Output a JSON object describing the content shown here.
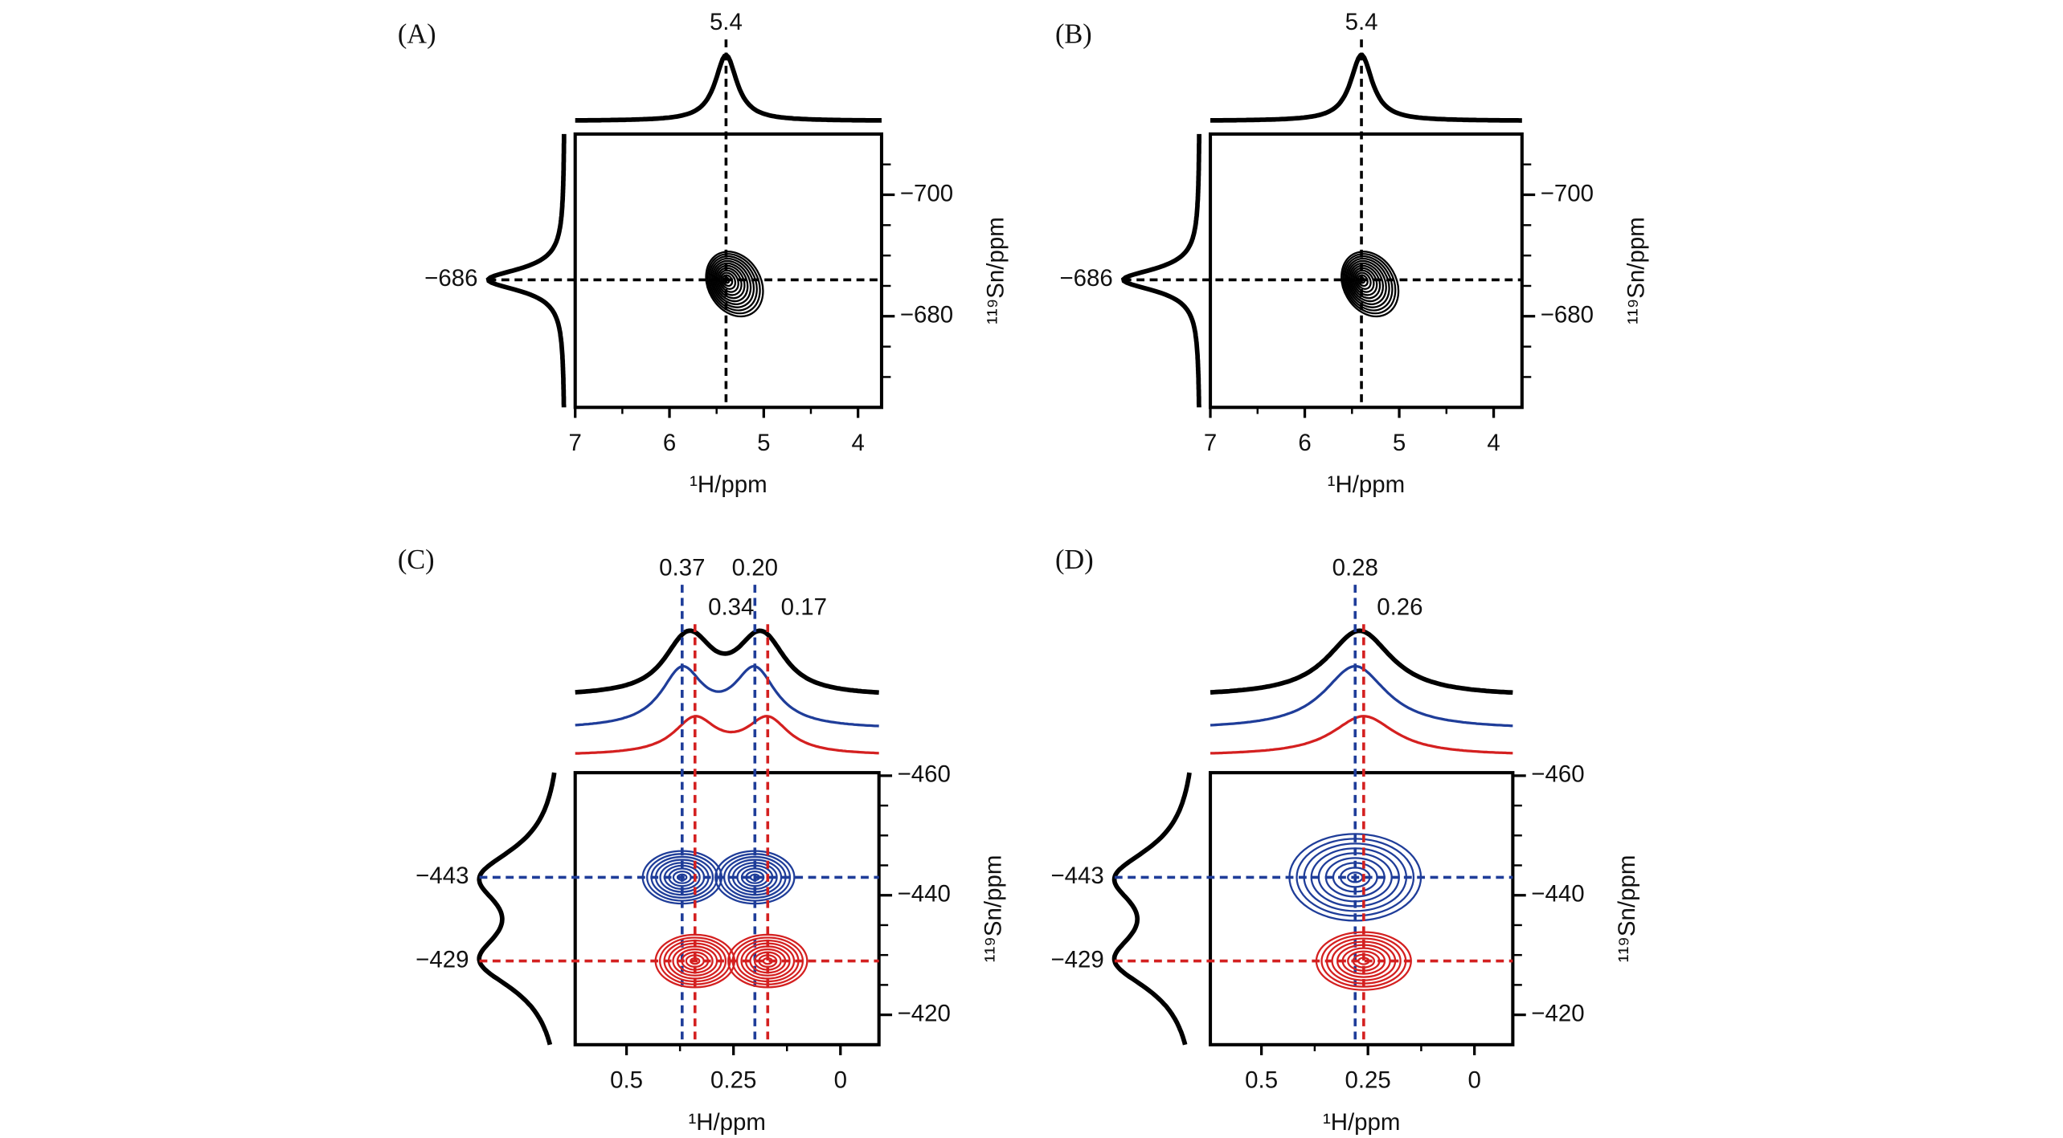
{
  "chart_data": [
    {
      "type": "contour",
      "label": "(A)",
      "x_label": "¹H/ppm",
      "y_label": "¹¹⁹Sn/ppm",
      "xlim": [
        7,
        3.75
      ],
      "xticks": [
        7,
        6,
        5,
        4
      ],
      "xminor": [
        6.5,
        5.5,
        4.5
      ],
      "ylim": [
        -710,
        -665
      ],
      "yticks": [
        {
          "value": -700,
          "label": "−700"
        },
        {
          "value": -680,
          "label": "−680"
        }
      ],
      "yminor": [
        -705,
        -695,
        -690,
        -685,
        -675,
        -670
      ],
      "peaks": [
        {
          "color": "#000000",
          "x": [
            5.4
          ],
          "x_labels": [
            "5.4"
          ],
          "y": -686,
          "y_label": "−686"
        }
      ]
    },
    {
      "type": "contour",
      "label": "(B)",
      "x_label": "¹H/ppm",
      "y_label": "¹¹⁹Sn/ppm",
      "xlim": [
        7,
        3.7
      ],
      "xticks": [
        7,
        6,
        5,
        4
      ],
      "xminor": [
        6.5,
        5.5,
        4.5
      ],
      "ylim": [
        -710,
        -665
      ],
      "yticks": [
        {
          "value": -700,
          "label": "−700"
        },
        {
          "value": -680,
          "label": "−680"
        }
      ],
      "yminor": [
        -705,
        -695,
        -690,
        -685,
        -675,
        -670
      ],
      "peaks": [
        {
          "color": "#000000",
          "x": [
            5.4
          ],
          "x_labels": [
            "5.4"
          ],
          "y": -686,
          "y_label": "−686"
        }
      ]
    },
    {
      "type": "contour",
      "label": "(C)",
      "x_label": "¹H/ppm",
      "y_label": "¹¹⁹Sn/ppm",
      "xlim": [
        0.62,
        -0.09
      ],
      "xticks": [
        0.5,
        0.25,
        0
      ],
      "xminor": [
        0.375,
        0.125
      ],
      "ylim": [
        -460.5,
        -415
      ],
      "yticks": [
        {
          "value": -460,
          "label": "−460"
        },
        {
          "value": -440,
          "label": "−440"
        },
        {
          "value": -420,
          "label": "−420"
        }
      ],
      "yminor": [
        -455,
        -450,
        -445,
        -435,
        -430,
        -425
      ],
      "peaks": [
        {
          "color": "#1f3d99",
          "x": [
            0.37,
            0.2
          ],
          "x_labels": [
            "0.37",
            "0.20"
          ],
          "y": -443,
          "y_label": "−443"
        },
        {
          "color": "#d42020",
          "x": [
            0.34,
            0.17
          ],
          "x_labels": [
            "0.34",
            "0.17"
          ],
          "y": -429,
          "y_label": "−429"
        }
      ]
    },
    {
      "type": "contour",
      "label": "(D)",
      "x_label": "¹H/ppm",
      "y_label": "¹¹⁹Sn/ppm",
      "xlim": [
        0.62,
        -0.09
      ],
      "xticks": [
        0.5,
        0.25,
        0
      ],
      "xminor": [
        0.375,
        0.125
      ],
      "ylim": [
        -460.5,
        -415
      ],
      "yticks": [
        {
          "value": -460,
          "label": "−460"
        },
        {
          "value": -440,
          "label": "−440"
        },
        {
          "value": -420,
          "label": "−420"
        }
      ],
      "yminor": [
        -455,
        -450,
        -445,
        -435,
        -430,
        -425
      ],
      "peaks": [
        {
          "color": "#1f3d99",
          "x": [
            0.28
          ],
          "x_labels": [
            "0.28"
          ],
          "y": -443,
          "y_label": "−443"
        },
        {
          "color": "#d42020",
          "x": [
            0.26
          ],
          "x_labels": [
            "0.26"
          ],
          "y": -429,
          "y_label": "−429"
        }
      ]
    }
  ]
}
